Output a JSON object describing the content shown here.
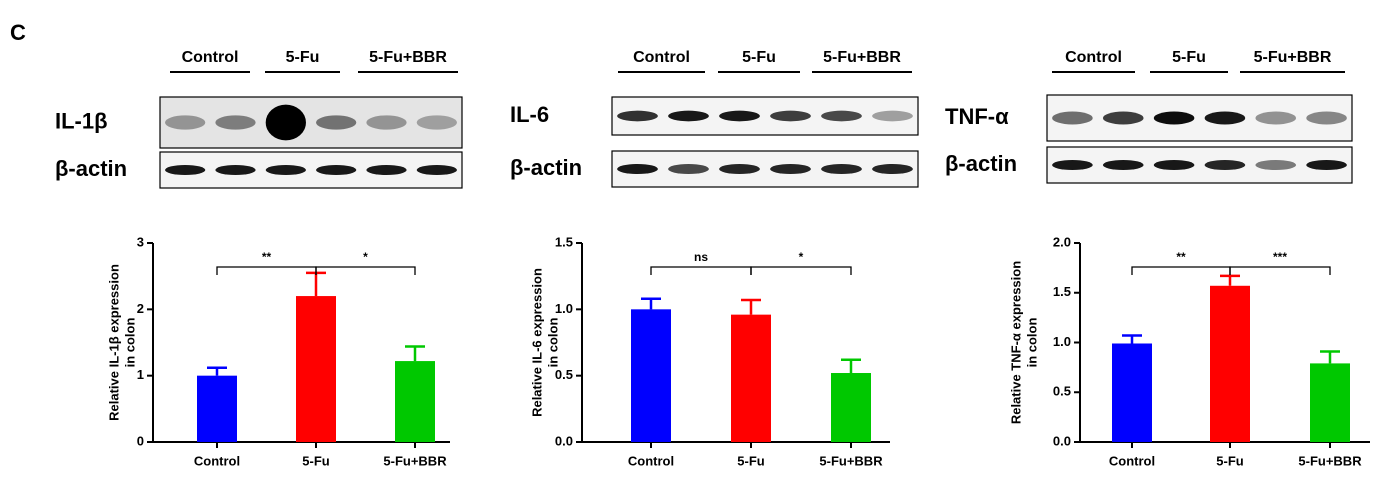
{
  "panel_label": "C",
  "blots": [
    {
      "groups": [
        "Control",
        "5-Fu",
        "5-Fu+BBR"
      ],
      "rows": [
        "IL-1β",
        "β-actin"
      ]
    },
    {
      "groups": [
        "Control",
        "5-Fu",
        "5-Fu+BBR"
      ],
      "rows": [
        "IL-6",
        "β-actin"
      ]
    },
    {
      "groups": [
        "Control",
        "5-Fu",
        "5-Fu+BBR"
      ],
      "rows": [
        "TNF-α",
        "β-actin"
      ]
    }
  ],
  "chart_data": [
    {
      "type": "bar",
      "ylabel": [
        "Relative IL-1β expression",
        "in colon"
      ],
      "categories": [
        "Control",
        "5-Fu",
        "5-Fu+BBR"
      ],
      "values": [
        1.0,
        2.2,
        1.22
      ],
      "errors": [
        0.12,
        0.35,
        0.22
      ],
      "colors": [
        "#0000ff",
        "#ff0000",
        "#00c800"
      ],
      "ylim": [
        0,
        3
      ],
      "yticks": [
        0,
        1,
        2,
        3
      ],
      "annotations": [
        "**",
        "*"
      ]
    },
    {
      "type": "bar",
      "ylabel": [
        "Relative IL-6 expression",
        "in colon"
      ],
      "categories": [
        "Control",
        "5-Fu",
        "5-Fu+BBR"
      ],
      "values": [
        1.0,
        0.96,
        0.52
      ],
      "errors": [
        0.08,
        0.11,
        0.1
      ],
      "colors": [
        "#0000ff",
        "#ff0000",
        "#00c800"
      ],
      "ylim": [
        0,
        1.5
      ],
      "yticks": [
        {
          "value": 0,
          "label": "0.0"
        },
        0.5,
        {
          "value": 1,
          "label": "1.0"
        },
        1.5
      ],
      "annotations": [
        "ns",
        "*"
      ]
    },
    {
      "type": "bar",
      "ylabel": [
        "Relative TNF-α expression",
        "in colon"
      ],
      "categories": [
        "Control",
        "5-Fu",
        "5-Fu+BBR"
      ],
      "values": [
        0.99,
        1.57,
        0.79
      ],
      "errors": [
        0.08,
        0.1,
        0.12
      ],
      "colors": [
        "#0000ff",
        "#ff0000",
        "#00c800"
      ],
      "ylim": [
        0,
        2
      ],
      "yticks": [
        {
          "value": 0,
          "label": "0.0"
        },
        0.5,
        {
          "value": 1,
          "label": "1.0"
        },
        1.5,
        {
          "value": 2,
          "label": "2.0"
        }
      ],
      "annotations": [
        "**",
        "***"
      ]
    }
  ]
}
